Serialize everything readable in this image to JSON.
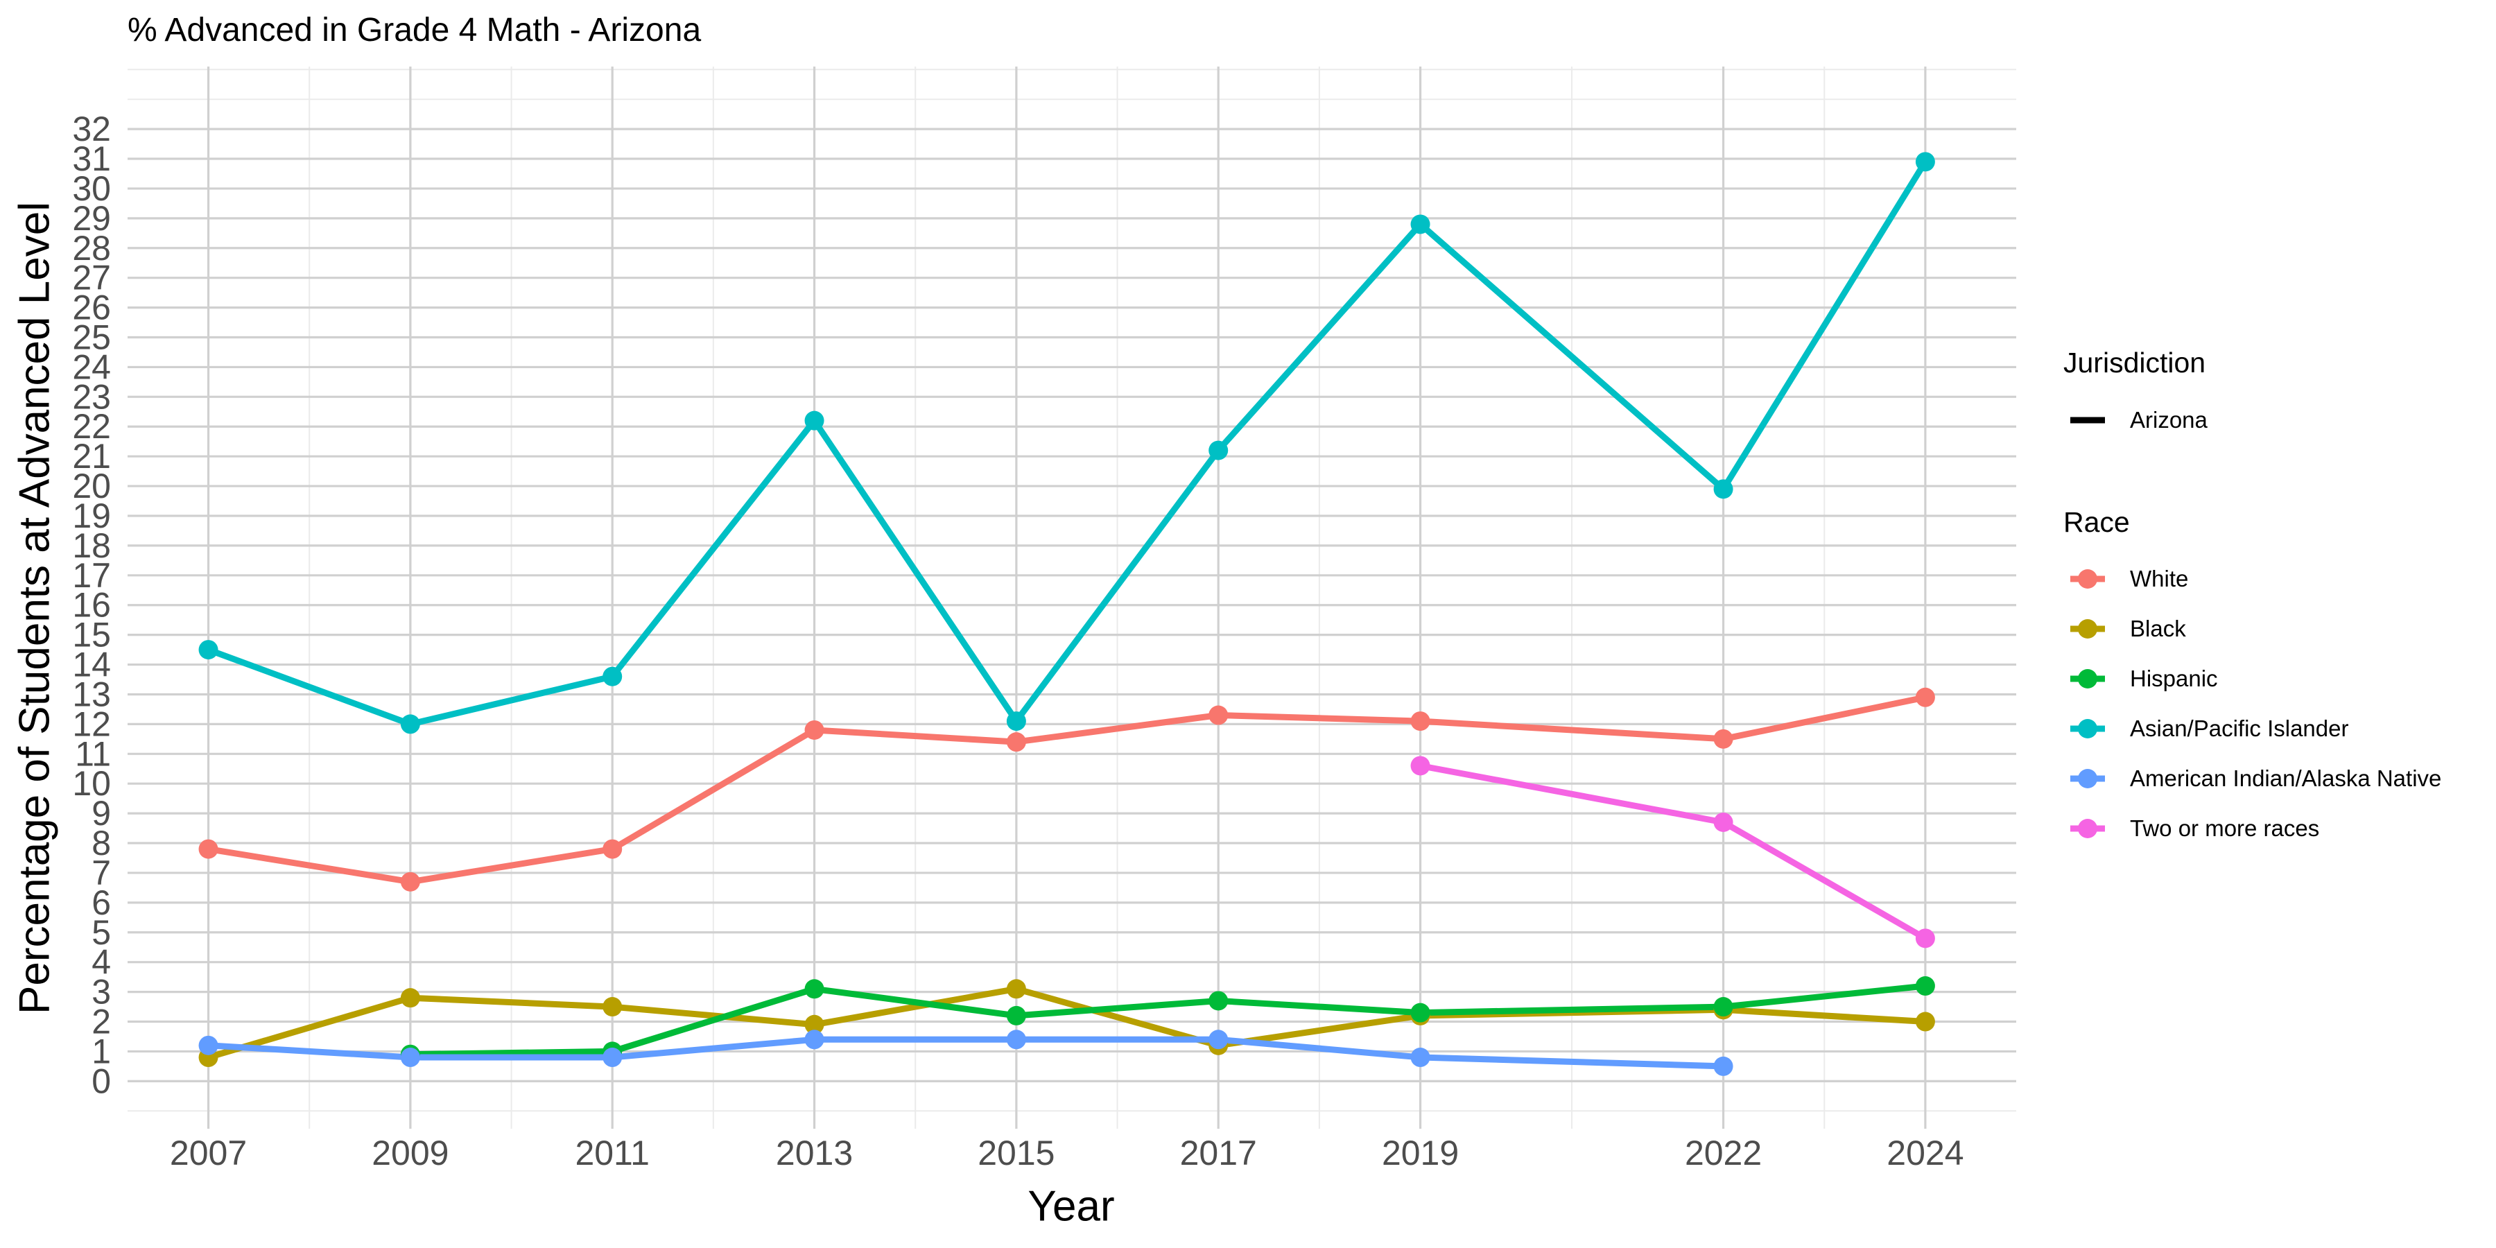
{
  "chart_data": {
    "type": "line",
    "title": "% Advanced in Grade 4 Math - Arizona",
    "xlabel": "Year",
    "ylabel": "Percentage of Students at Advanced Level",
    "x": [
      2007,
      2009,
      2011,
      2013,
      2015,
      2017,
      2019,
      2022,
      2024
    ],
    "x_tick_labels": [
      "2007",
      "2009",
      "2011",
      "2013",
      "2015",
      "2017",
      "2019",
      "2022",
      "2024"
    ],
    "y_tick_labels": [
      "0",
      "1",
      "2",
      "3",
      "4",
      "5",
      "6",
      "7",
      "8",
      "9",
      "10",
      "11",
      "12",
      "13",
      "14",
      "15",
      "16",
      "17",
      "18",
      "19",
      "20",
      "21",
      "22",
      "23",
      "24",
      "25",
      "26",
      "27",
      "28",
      "29",
      "30",
      "31",
      "32"
    ],
    "xlim": [
      2006.2,
      2024.9
    ],
    "ylim": [
      -1.6,
      34.1
    ],
    "grid": true,
    "legend_placement": "right",
    "legend_groups": [
      {
        "title": "Jurisdiction",
        "items": [
          {
            "label": "Arizona",
            "style": "line",
            "color": "#000000"
          }
        ]
      },
      {
        "title": "Race",
        "items": [
          {
            "label": "White",
            "style": "line-point",
            "color": "#F8766D"
          },
          {
            "label": "Black",
            "style": "line-point",
            "color": "#B79F00"
          },
          {
            "label": "Hispanic",
            "style": "line-point",
            "color": "#00BA38"
          },
          {
            "label": "Asian/Pacific Islander",
            "style": "line-point",
            "color": "#00BFC4"
          },
          {
            "label": "American Indian/Alaska Native",
            "style": "line-point",
            "color": "#619CFF"
          },
          {
            "label": "Two or more races",
            "style": "line-point",
            "color": "#F564E3"
          }
        ]
      }
    ],
    "series": [
      {
        "name": "White",
        "color": "#F8766D",
        "points": [
          [
            2007,
            7.8
          ],
          [
            2009,
            6.7
          ],
          [
            2011,
            7.8
          ],
          [
            2013,
            11.8
          ],
          [
            2015,
            11.4
          ],
          [
            2017,
            12.3
          ],
          [
            2019,
            12.1
          ],
          [
            2022,
            11.5
          ],
          [
            2024,
            12.9
          ]
        ]
      },
      {
        "name": "Black",
        "color": "#B79F00",
        "points": [
          [
            2007,
            0.8
          ],
          [
            2009,
            2.8
          ],
          [
            2011,
            2.5
          ],
          [
            2013,
            1.9
          ],
          [
            2015,
            3.1
          ],
          [
            2017,
            1.2
          ],
          [
            2019,
            2.2
          ],
          [
            2022,
            2.4
          ],
          [
            2024,
            2.0
          ]
        ]
      },
      {
        "name": "Hispanic",
        "color": "#00BA38",
        "points": [
          [
            2009,
            0.9
          ],
          [
            2011,
            1.0
          ],
          [
            2013,
            3.1
          ],
          [
            2015,
            2.2
          ],
          [
            2017,
            2.7
          ],
          [
            2019,
            2.3
          ],
          [
            2022,
            2.5
          ],
          [
            2024,
            3.2
          ]
        ]
      },
      {
        "name": "Asian/Pacific Islander",
        "color": "#00BFC4",
        "points": [
          [
            2007,
            14.5
          ],
          [
            2009,
            12.0
          ],
          [
            2011,
            13.6
          ],
          [
            2013,
            22.2
          ],
          [
            2015,
            12.1
          ],
          [
            2017,
            21.2
          ],
          [
            2019,
            28.8
          ],
          [
            2022,
            19.9
          ],
          [
            2024,
            30.9
          ]
        ]
      },
      {
        "name": "American Indian/Alaska Native",
        "color": "#619CFF",
        "points": [
          [
            2007,
            1.2
          ],
          [
            2009,
            0.8
          ],
          [
            2011,
            0.8
          ],
          [
            2013,
            1.4
          ],
          [
            2015,
            1.4
          ],
          [
            2017,
            1.4
          ],
          [
            2019,
            0.8
          ],
          [
            2022,
            0.5
          ]
        ]
      },
      {
        "name": "Two or more races",
        "color": "#F564E3",
        "points": [
          [
            2019,
            10.6
          ],
          [
            2022,
            8.7
          ],
          [
            2024,
            4.8
          ]
        ]
      }
    ]
  }
}
